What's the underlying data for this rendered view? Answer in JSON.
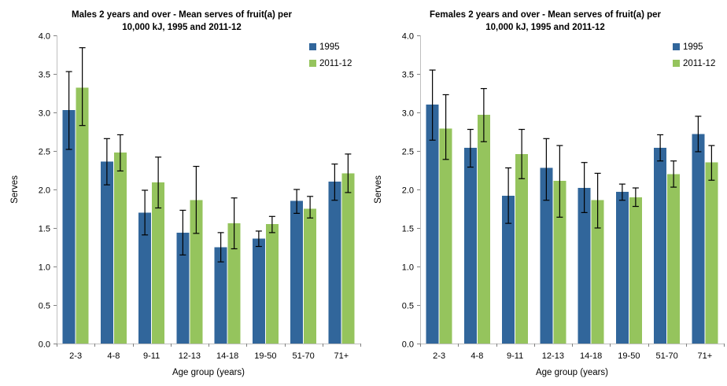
{
  "page": {
    "background": "#FFFFFF"
  },
  "colors": {
    "series_1995": "#31669B",
    "series_2011": "#95C45D",
    "axis_line": "#BFBFBF",
    "tick_mark": "#808080",
    "error_bar": "#000000",
    "text": "#000000"
  },
  "chart_data": [
    {
      "type": "bar",
      "title": "Males 2 years and over - Mean serves of fruit(a) per 10,000 kJ, 1995 and 2011-12",
      "title_lines": [
        "Males 2 years and over - Mean serves of fruit(a) per",
        "10,000 kJ, 1995 and 2011-12"
      ],
      "xlabel": "Age group (years)",
      "ylabel": "Serves",
      "ylim": [
        0,
        4
      ],
      "ytick_step": 0.5,
      "ytick_labels": [
        "0.0",
        "0.5",
        "1.0",
        "1.5",
        "2.0",
        "2.5",
        "3.0",
        "3.5",
        "4.0"
      ],
      "grid": false,
      "legend_position": "top-right",
      "categories": [
        "2-3",
        "4-8",
        "9-11",
        "12-13",
        "14-18",
        "19-50",
        "51-70",
        "71+"
      ],
      "series": [
        {
          "name": "1995",
          "color": "#31669B",
          "values": [
            3.03,
            2.36,
            1.7,
            1.44,
            1.25,
            1.36,
            1.85,
            2.1
          ],
          "err_low": [
            2.52,
            2.06,
            1.41,
            1.15,
            1.06,
            1.26,
            1.69,
            1.86
          ],
          "err_high": [
            3.53,
            2.66,
            1.99,
            1.73,
            1.44,
            1.46,
            2.0,
            2.33
          ]
        },
        {
          "name": "2011-12",
          "color": "#95C45D",
          "values": [
            3.32,
            2.48,
            2.09,
            1.86,
            1.56,
            1.55,
            1.75,
            2.21
          ],
          "err_low": [
            2.83,
            2.24,
            1.76,
            1.43,
            1.23,
            1.44,
            1.63,
            1.96
          ],
          "err_high": [
            3.84,
            2.71,
            2.42,
            2.3,
            1.89,
            1.65,
            1.91,
            2.46
          ]
        }
      ]
    },
    {
      "type": "bar",
      "title": "Females 2 years and over - Mean serves of fruit(a) per 10,000 kJ, 1995 and 2011-12",
      "title_lines": [
        "Females 2 years and over - Mean serves of fruit(a) per",
        "10,000 kJ, 1995 and 2011-12"
      ],
      "xlabel": "Age group (years)",
      "ylabel": "Serves",
      "ylim": [
        0,
        4
      ],
      "ytick_step": 0.5,
      "ytick_labels": [
        "0.0",
        "0.5",
        "1.0",
        "1.5",
        "2.0",
        "2.5",
        "3.0",
        "3.5",
        "4.0"
      ],
      "grid": false,
      "legend_position": "top-right",
      "categories": [
        "2-3",
        "4-8",
        "9-11",
        "12-13",
        "14-18",
        "19-50",
        "51-70",
        "71+"
      ],
      "series": [
        {
          "name": "1995",
          "color": "#31669B",
          "values": [
            3.1,
            2.54,
            1.92,
            2.28,
            2.02,
            1.97,
            2.54,
            2.72
          ],
          "err_low": [
            2.64,
            2.29,
            1.56,
            1.86,
            1.7,
            1.86,
            2.37,
            2.49
          ],
          "err_high": [
            3.55,
            2.78,
            2.28,
            2.66,
            2.35,
            2.07,
            2.71,
            2.95
          ]
        },
        {
          "name": "2011-12",
          "color": "#95C45D",
          "values": [
            2.79,
            2.97,
            2.46,
            2.11,
            1.86,
            1.9,
            2.2,
            2.35
          ],
          "err_low": [
            2.39,
            2.62,
            2.14,
            1.64,
            1.5,
            1.78,
            2.03,
            2.12
          ],
          "err_high": [
            3.23,
            3.31,
            2.78,
            2.57,
            2.21,
            2.02,
            2.37,
            2.57
          ]
        }
      ]
    }
  ]
}
